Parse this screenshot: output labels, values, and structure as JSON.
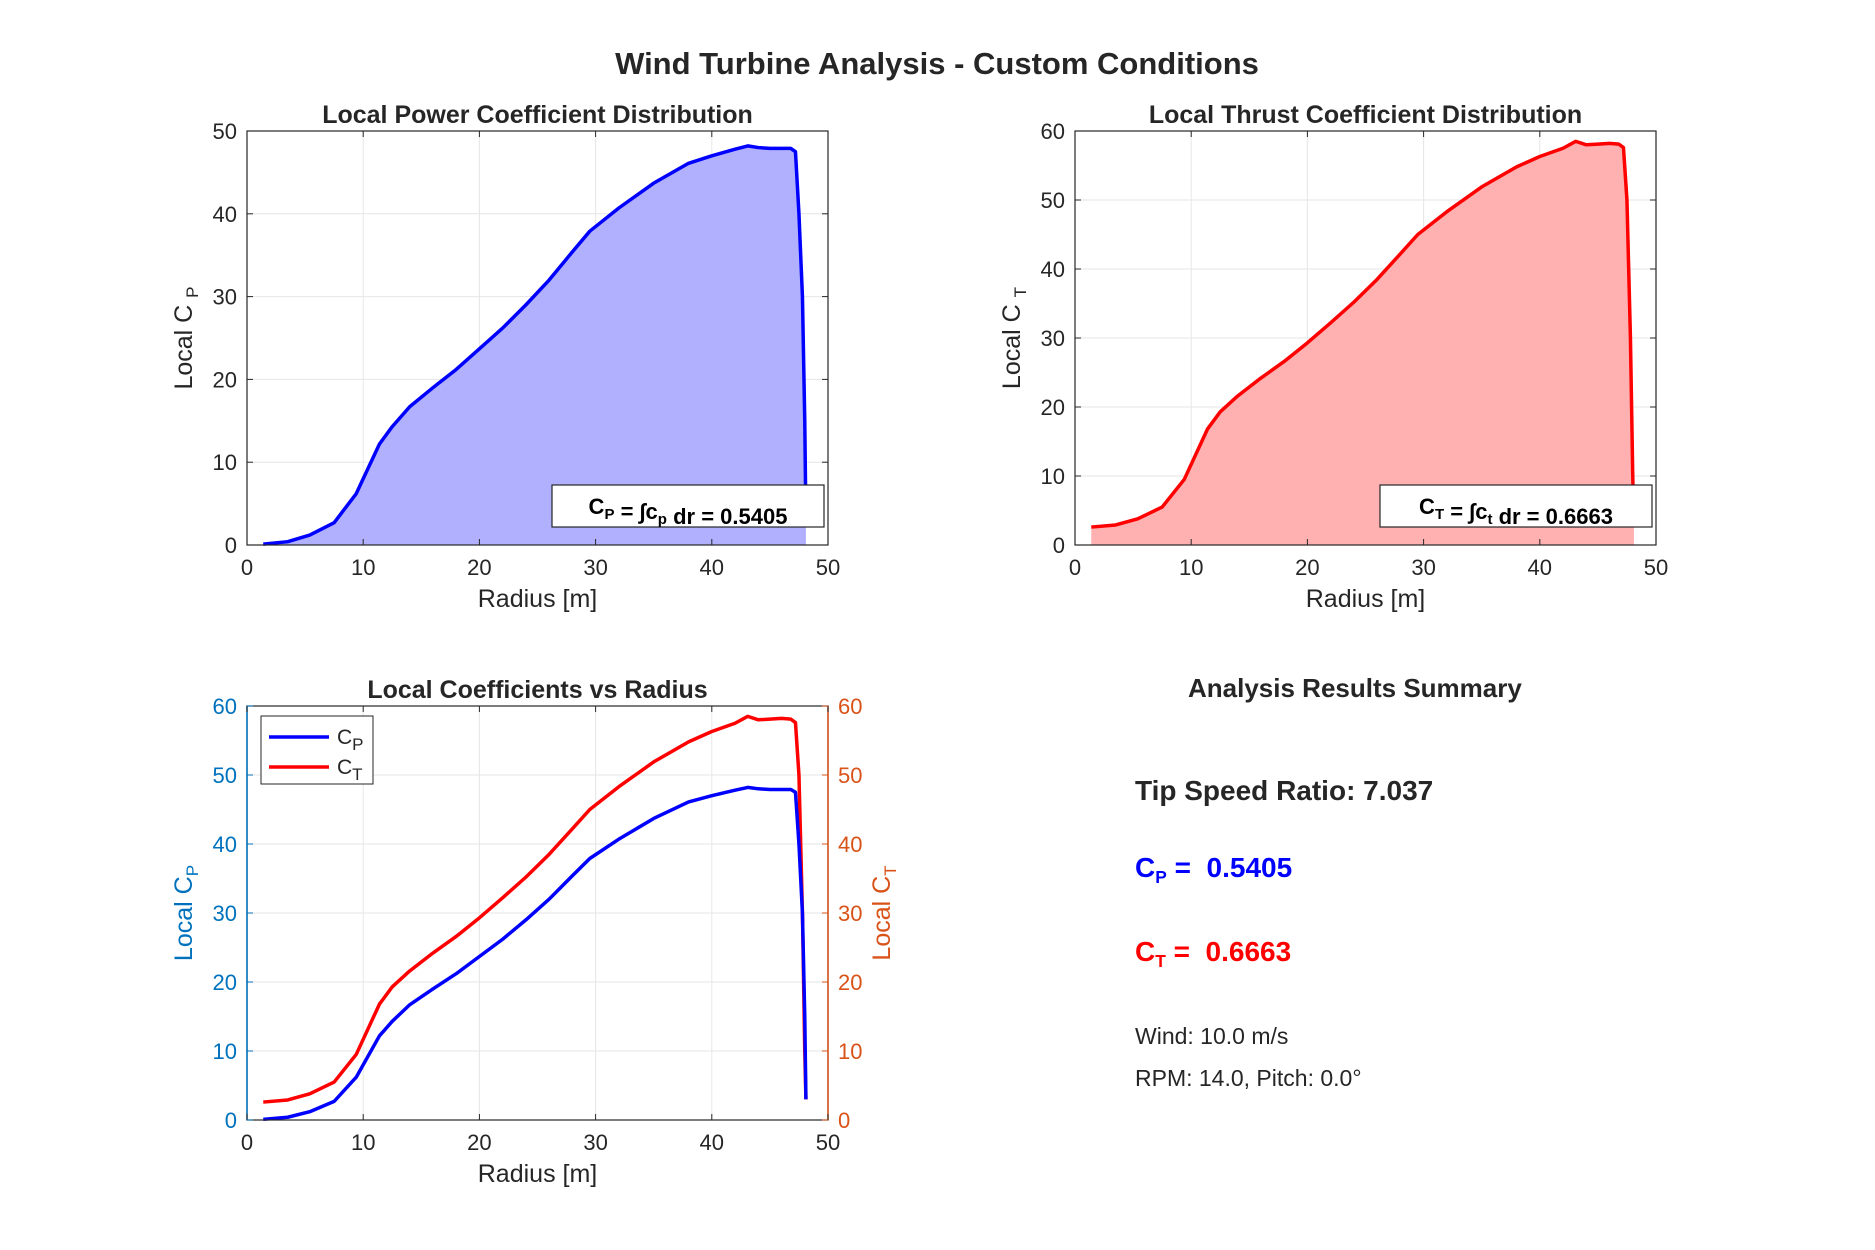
{
  "figure_title": "Wind Turbine Analysis - Custom Conditions",
  "colors": {
    "cp": "#0000ff",
    "ct": "#ff0000",
    "cp_fill": "#b0b0ff",
    "ct_fill": "#ffb0b0",
    "left_axis": "#0072bd",
    "right_axis": "#d95319",
    "text": "#262626",
    "grid": "#e6e6e6"
  },
  "chart_data": [
    {
      "type": "area",
      "title": "Local Power Coefficient Distribution",
      "xlabel": "Radius [m]",
      "ylabel": "Local C_P",
      "xlim": [
        0,
        50
      ],
      "ylim": [
        0,
        50
      ],
      "xticks": [
        0,
        10,
        20,
        30,
        40,
        50
      ],
      "yticks": [
        0,
        10,
        20,
        30,
        40,
        50
      ],
      "grid": true,
      "series": [
        {
          "values_key": "cp"
        }
      ],
      "annotation": "C_P = ∫c_p dr = 0.5405",
      "annotation_position": "bottom-right"
    },
    {
      "type": "area",
      "title": "Local Thrust Coefficient Distribution",
      "xlabel": "Radius [m]",
      "ylabel": "Local C_T",
      "xlim": [
        0,
        50
      ],
      "ylim": [
        0,
        60
      ],
      "xticks": [
        0,
        10,
        20,
        30,
        40,
        50
      ],
      "yticks": [
        0,
        10,
        20,
        30,
        40,
        50,
        60
      ],
      "grid": true,
      "series": [
        {
          "values_key": "ct"
        }
      ],
      "annotation": "C_T = ∫c_t dr = 0.6663",
      "annotation_position": "bottom-right"
    },
    {
      "type": "line",
      "title": "Local Coefficients vs Radius",
      "xlabel": "Radius [m]",
      "ylabel": "Local C_P",
      "ylabel_right": "Local C_T",
      "xlim": [
        0,
        50
      ],
      "ylim": [
        0,
        60
      ],
      "ylim_right": [
        0,
        60
      ],
      "xticks": [
        0,
        10,
        20,
        30,
        40,
        50
      ],
      "yticks": [
        0,
        10,
        20,
        30,
        40,
        50,
        60
      ],
      "grid": true,
      "legend": [
        "C_P",
        "C_T"
      ],
      "legend_position": "top-left"
    }
  ],
  "series_data": {
    "x": [
      1.4,
      3.5,
      5.4,
      7.5,
      9.4,
      11.4,
      12.5,
      14.0,
      16.0,
      18.0,
      20.0,
      22.0,
      24.0,
      26.0,
      28.0,
      29.5,
      32.0,
      35.0,
      38.0,
      40.0,
      42.0,
      43.1,
      44.0,
      45.0,
      46.0,
      46.8,
      47.2,
      47.5,
      47.8,
      48.0,
      48.1
    ],
    "cp": [
      0.1,
      0.4,
      1.2,
      2.7,
      6.2,
      12.2,
      14.3,
      16.7,
      19.0,
      21.2,
      23.7,
      26.2,
      29.0,
      32.0,
      35.4,
      37.9,
      40.7,
      43.7,
      46.1,
      47.0,
      47.8,
      48.2,
      48.0,
      47.9,
      47.9,
      47.9,
      47.5,
      40.0,
      30.0,
      15.0,
      3.0
    ],
    "ct": [
      2.6,
      2.9,
      3.8,
      5.5,
      9.5,
      16.8,
      19.3,
      21.6,
      24.2,
      26.6,
      29.3,
      32.2,
      35.2,
      38.5,
      42.2,
      45.0,
      48.3,
      51.9,
      54.8,
      56.3,
      57.5,
      58.5,
      58.0,
      58.1,
      58.2,
      58.1,
      57.6,
      50.0,
      30.0,
      10.0,
      3.0
    ]
  },
  "summary": {
    "title": "Analysis Results Summary",
    "tsr": "Tip Speed Ratio: 7.037",
    "cp_label": "C",
    "cp_sub": "P",
    "cp_value": "=  0.5405",
    "ct_label": "C",
    "ct_sub": "T",
    "ct_value": "=  0.6663",
    "wind": "Wind: 10.0 m/s",
    "rpm_pitch": "RPM: 14.0, Pitch: 0.0°"
  }
}
